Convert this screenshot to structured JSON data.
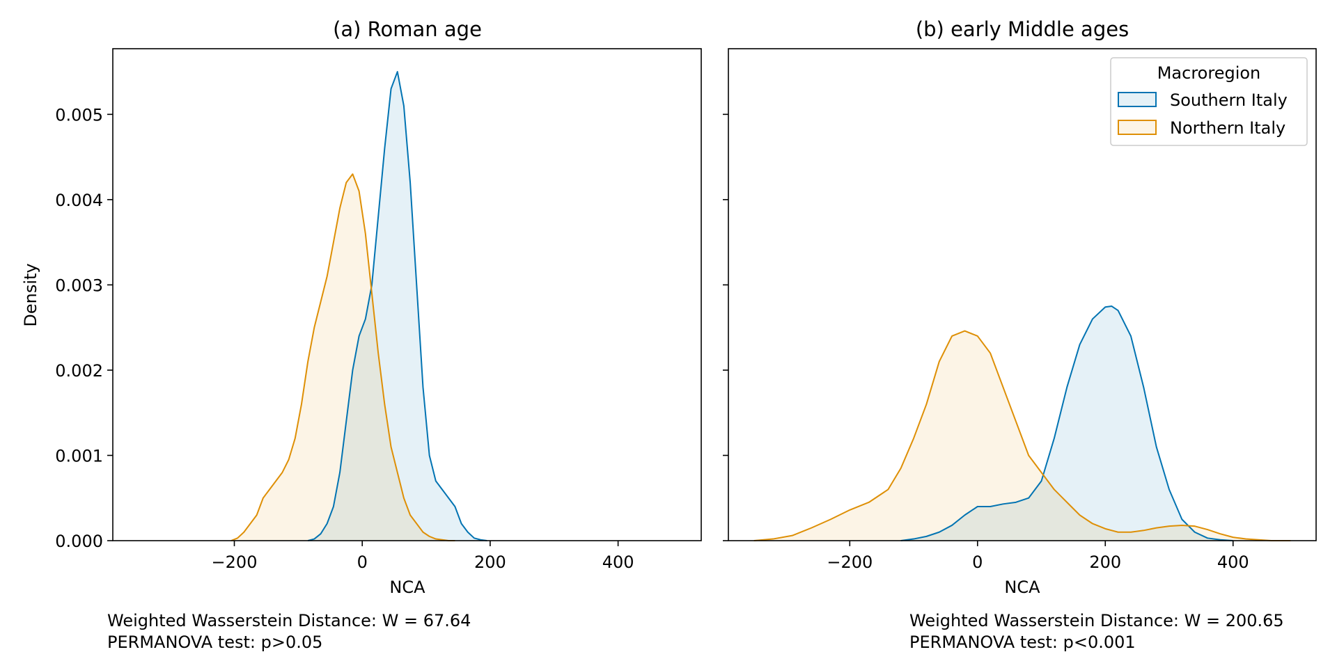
{
  "chart_data": [
    {
      "type": "area",
      "title": "(a) Roman age",
      "xlabel": "NCA",
      "ylabel": "Density",
      "xlim": [
        -390,
        530
      ],
      "ylim": [
        0,
        0.00577
      ],
      "xticks": [
        -200,
        0,
        200,
        400
      ],
      "xtick_labels": [
        "−200",
        "0",
        "200",
        "400"
      ],
      "yticks": [
        0,
        0.001,
        0.002,
        0.003,
        0.004,
        0.005
      ],
      "ytick_labels": [
        "0.000",
        "0.001",
        "0.002",
        "0.003",
        "0.004",
        "0.005"
      ],
      "grid": false,
      "series": [
        {
          "name": "Southern Italy",
          "color": "#0173b2",
          "x": [
            -85,
            -75,
            -65,
            -55,
            -45,
            -35,
            -25,
            -15,
            -5,
            5,
            15,
            25,
            35,
            45,
            55,
            65,
            75,
            85,
            95,
            105,
            115,
            125,
            135,
            145,
            155,
            165,
            175,
            185,
            195
          ],
          "y": [
            0.0,
            2e-05,
            8e-05,
            0.0002,
            0.0004,
            0.0008,
            0.0014,
            0.002,
            0.0024,
            0.0026,
            0.003,
            0.0038,
            0.0046,
            0.0053,
            0.0055,
            0.0051,
            0.0042,
            0.003,
            0.0018,
            0.001,
            0.0007,
            0.0006,
            0.0005,
            0.0004,
            0.0002,
            0.0001,
            3e-05,
            1e-05,
            0.0
          ]
        },
        {
          "name": "Northern Italy",
          "color": "#de8f05",
          "x": [
            -205,
            -195,
            -185,
            -175,
            -165,
            -155,
            -145,
            -135,
            -125,
            -115,
            -105,
            -95,
            -85,
            -75,
            -65,
            -55,
            -45,
            -35,
            -25,
            -15,
            -5,
            5,
            15,
            25,
            35,
            45,
            55,
            65,
            75,
            85,
            95,
            105,
            115,
            125,
            135,
            145
          ],
          "y": [
            0.0,
            3e-05,
            0.0001,
            0.0002,
            0.0003,
            0.0005,
            0.0006,
            0.0007,
            0.0008,
            0.00095,
            0.0012,
            0.0016,
            0.0021,
            0.0025,
            0.0028,
            0.0031,
            0.0035,
            0.0039,
            0.0042,
            0.0043,
            0.0041,
            0.0036,
            0.0029,
            0.0022,
            0.0016,
            0.0011,
            0.0008,
            0.0005,
            0.0003,
            0.0002,
            0.0001,
            5e-05,
            2e-05,
            1e-05,
            0.0,
            0.0
          ]
        }
      ],
      "annotations": [
        "Weighted Wasserstein Distance: W = 67.64",
        "PERMANOVA test: p>0.05"
      ]
    },
    {
      "type": "area",
      "title": "(b) early Middle ages",
      "xlabel": "NCA",
      "ylabel": "",
      "xlim": [
        -390,
        530
      ],
      "ylim": [
        0,
        0.00577
      ],
      "xticks": [
        -200,
        0,
        200,
        400
      ],
      "xtick_labels": [
        "−200",
        "0",
        "200",
        "400"
      ],
      "yticks": [
        0,
        0.001,
        0.002,
        0.003,
        0.004,
        0.005
      ],
      "grid": false,
      "series": [
        {
          "name": "Southern Italy",
          "color": "#0173b2",
          "x": [
            -120,
            -100,
            -80,
            -60,
            -40,
            -20,
            0,
            20,
            40,
            60,
            80,
            100,
            120,
            140,
            160,
            180,
            200,
            210,
            220,
            240,
            260,
            280,
            300,
            320,
            340,
            360,
            380,
            400
          ],
          "y": [
            0.0,
            2e-05,
            5e-05,
            0.0001,
            0.00018,
            0.0003,
            0.0004,
            0.0004,
            0.00043,
            0.00045,
            0.0005,
            0.0007,
            0.0012,
            0.0018,
            0.0023,
            0.0026,
            0.00274,
            0.00275,
            0.0027,
            0.0024,
            0.0018,
            0.0011,
            0.0006,
            0.00025,
            0.0001,
            3e-05,
            1e-05,
            0.0
          ]
        },
        {
          "name": "Northern Italy",
          "color": "#de8f05",
          "x": [
            -350,
            -320,
            -290,
            -260,
            -230,
            -200,
            -170,
            -140,
            -120,
            -100,
            -80,
            -60,
            -40,
            -20,
            0,
            20,
            40,
            60,
            80,
            100,
            120,
            140,
            160,
            180,
            200,
            220,
            240,
            260,
            280,
            300,
            320,
            340,
            360,
            380,
            400,
            420,
            440,
            460,
            490
          ],
          "y": [
            0.0,
            2e-05,
            6e-05,
            0.00015,
            0.00025,
            0.00036,
            0.00045,
            0.0006,
            0.00085,
            0.0012,
            0.0016,
            0.0021,
            0.0024,
            0.00246,
            0.0024,
            0.0022,
            0.0018,
            0.0014,
            0.001,
            0.0008,
            0.0006,
            0.00045,
            0.0003,
            0.0002,
            0.00014,
            0.0001,
            0.0001,
            0.00012,
            0.00015,
            0.00017,
            0.00018,
            0.00017,
            0.00013,
            8e-05,
            4e-05,
            2e-05,
            1e-05,
            0.0,
            0.0
          ]
        }
      ],
      "legend": {
        "title": "Macroregion",
        "placement": "top-right",
        "entries": [
          "Southern Italy",
          "Northern Italy"
        ]
      },
      "annotations": [
        "Weighted Wasserstein Distance: W = 200.65",
        "PERMANOVA test: p<0.001"
      ]
    }
  ]
}
